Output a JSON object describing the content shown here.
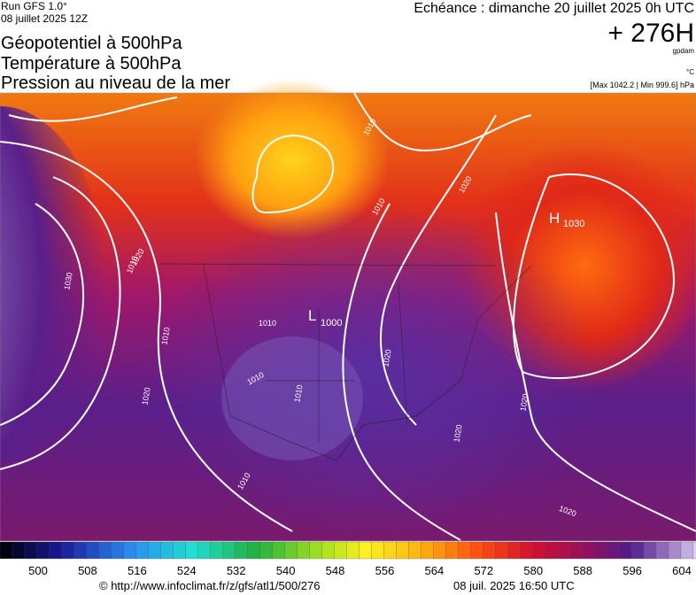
{
  "header": {
    "run": "Run GFS 1.0°",
    "run_date": "08 juillet 2025 12Z",
    "titles": [
      "Géopotentiel à 500hPa",
      "Température à 500hPa",
      "Pression au niveau de la mer"
    ],
    "valid": "Echéance : dimanche 20 juillet 2025 0h UTC",
    "lead": "+ 276H",
    "unit_geo": "gpdam",
    "unit_temp": "°C",
    "pressure_range": "[Max 1042.2 | Min 999.6] hPa"
  },
  "map": {
    "high": {
      "letter": "H",
      "value": "1030"
    },
    "low": {
      "letter": "L",
      "value": "1000"
    },
    "contour_labels": [
      "1010",
      "1020",
      "1030",
      "1020",
      "1010",
      "1010",
      "1010",
      "1020",
      "1020",
      "1010",
      "1010",
      "1020",
      "1020",
      "1020",
      "1010",
      "1010"
    ]
  },
  "colorbar": {
    "ticks": [
      500,
      508,
      516,
      524,
      532,
      540,
      548,
      556,
      564,
      572,
      580,
      588,
      596,
      604
    ]
  },
  "footer": {
    "url": "© http://www.infoclimat.fr/z/gfs/atl1/500/276",
    "generated": "08 juil. 2025 16:50 UTC"
  }
}
